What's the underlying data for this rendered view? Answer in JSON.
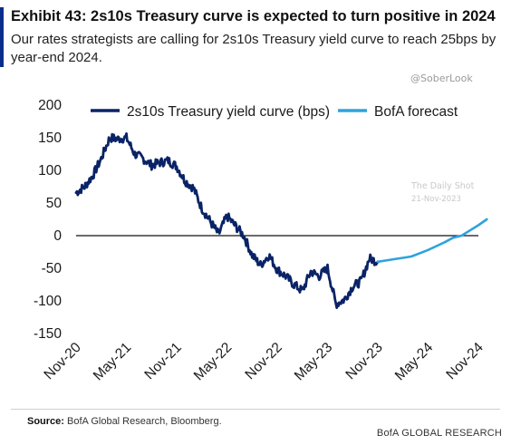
{
  "header": {
    "title": "Exhibit 43: 2s10s Treasury curve is expected to turn positive in 2024",
    "subtitle": "Our rates strategists are calling for 2s10s Treasury yield curve to reach 25bps by year-end 2024."
  },
  "watermarks": {
    "handle": "@SoberLook",
    "site": "The Daily Shot",
    "date": "21-Nov-2023"
  },
  "footer": {
    "source_label": "Source:",
    "source_text": "BofA Global Research, Bloomberg.",
    "brand": "BofA GLOBAL RESEARCH"
  },
  "colors": {
    "actual": "#0a2366",
    "forecast": "#2ea3dc",
    "zero_line": "#111111",
    "accent": "#0a2d8c"
  },
  "chart_data": {
    "type": "line",
    "title": "",
    "xlabel": "",
    "ylabel": "",
    "ylim": [
      -150,
      200
    ],
    "yticks": [
      200,
      150,
      100,
      50,
      0,
      -50,
      -100,
      -150
    ],
    "xticks": [
      "Nov-20",
      "May-21",
      "Nov-21",
      "May-22",
      "Nov-22",
      "May-23",
      "Nov-23",
      "May-24",
      "Nov-24"
    ],
    "grid": false,
    "zero_line": true,
    "legend_position": "top",
    "series": [
      {
        "name": "2s10s Treasury yield curve (bps)",
        "style": "solid-thick",
        "x": [
          "2020-11",
          "2020-12",
          "2021-01",
          "2021-02",
          "2021-03",
          "2021-04",
          "2021-05",
          "2021-06",
          "2021-07",
          "2021-08",
          "2021-09",
          "2021-10",
          "2021-11",
          "2021-12",
          "2022-01",
          "2022-02",
          "2022-03",
          "2022-04",
          "2022-05",
          "2022-06",
          "2022-07",
          "2022-08",
          "2022-09",
          "2022-10",
          "2022-11",
          "2022-12",
          "2023-01",
          "2023-02",
          "2023-03",
          "2023-04",
          "2023-05",
          "2023-06",
          "2023-07",
          "2023-08",
          "2023-09",
          "2023-10",
          "2023-11"
        ],
        "values": [
          66,
          75,
          92,
          118,
          150,
          148,
          150,
          125,
          118,
          108,
          112,
          115,
          106,
          84,
          73,
          42,
          22,
          2,
          30,
          15,
          0,
          -30,
          -45,
          -30,
          -52,
          -62,
          -75,
          -85,
          -55,
          -62,
          -50,
          -105,
          -98,
          -78,
          -70,
          -35,
          -40
        ]
      },
      {
        "name": "BofA forecast",
        "style": "solid",
        "x": [
          "2023-11",
          "2023-12",
          "2024-01",
          "2024-02",
          "2024-03",
          "2024-04",
          "2024-05",
          "2024-06",
          "2024-07",
          "2024-08",
          "2024-09",
          "2024-10",
          "2024-11",
          "2024-12"
        ],
        "values": [
          -40,
          -38,
          -36,
          -34,
          -32,
          -27,
          -22,
          -16,
          -10,
          -3,
          0,
          8,
          16,
          25
        ]
      }
    ]
  }
}
